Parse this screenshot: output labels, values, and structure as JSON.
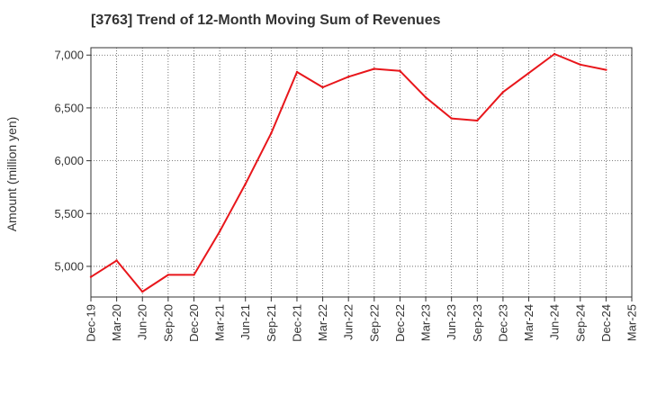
{
  "chart_data": {
    "type": "line",
    "title": "[3763]  Trend of 12-Month Moving Sum of Revenues",
    "xlabel": "",
    "ylabel": "Amount (million yen)",
    "categories": [
      "Dec-19",
      "Mar-20",
      "Jun-20",
      "Sep-20",
      "Dec-20",
      "Mar-21",
      "Jun-21",
      "Sep-21",
      "Dec-21",
      "Mar-22",
      "Jun-22",
      "Sep-22",
      "Dec-22",
      "Mar-23",
      "Jun-23",
      "Sep-23",
      "Dec-23",
      "Mar-24",
      "Jun-24",
      "Sep-24",
      "Dec-24",
      "Mar-25"
    ],
    "ylim": [
      4710,
      7070
    ],
    "y_ticks": [
      5000,
      5500,
      6000,
      6500,
      7000
    ],
    "y_tick_labels": [
      "5,000",
      "5,500",
      "6,000",
      "6,500",
      "7,000"
    ],
    "grid": true,
    "series": [
      {
        "color": "#e8161b",
        "values": [
          4900,
          5055,
          4760,
          4920,
          4920,
          5330,
          5780,
          6260,
          6840,
          6695,
          6795,
          6870,
          6850,
          6600,
          6400,
          6380,
          6650,
          6830,
          7010,
          6910,
          6860,
          null
        ]
      }
    ]
  }
}
